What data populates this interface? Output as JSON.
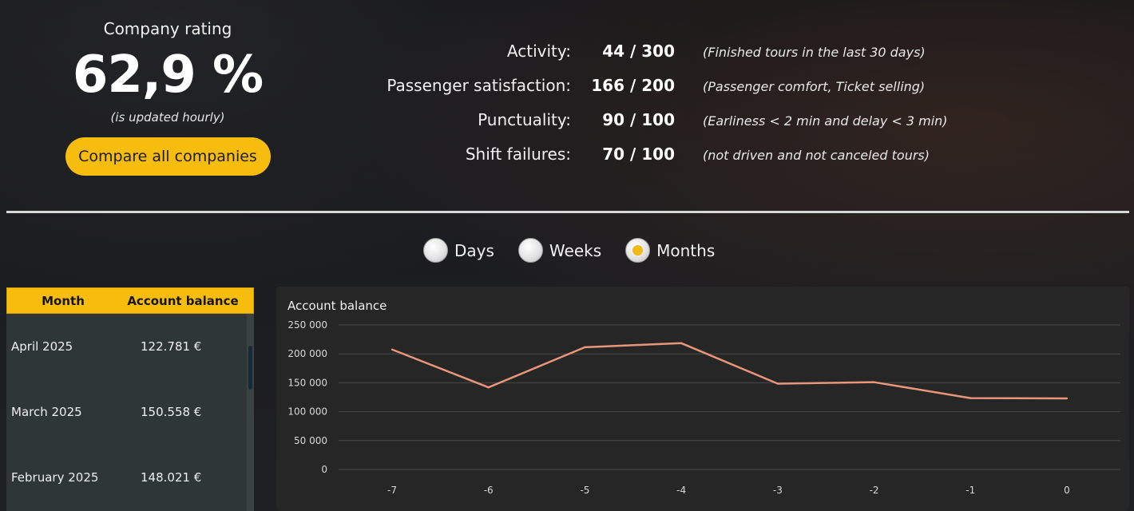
{
  "rating": {
    "title": "Company rating",
    "value": "62,9 %",
    "note": "(is updated hourly)",
    "compare_button": "Compare all companies"
  },
  "metrics": [
    {
      "label": "Activity:",
      "value": "44 / 300",
      "desc": "(Finished tours in the last 30 days)"
    },
    {
      "label": "Passenger satisfaction:",
      "value": "166 / 200",
      "desc": "(Passenger comfort, Ticket selling)"
    },
    {
      "label": "Punctuality:",
      "value": "90 / 100",
      "desc": "(Earliness < 2 min and delay < 3 min)"
    },
    {
      "label": "Shift failures:",
      "value": "70 / 100",
      "desc": "(not driven and not canceled tours)"
    }
  ],
  "period": {
    "options": [
      "Days",
      "Weeks",
      "Months"
    ],
    "selected": "Months"
  },
  "table": {
    "headers": [
      "Month",
      "Account balance"
    ],
    "rows": [
      [
        "April 2025",
        "122.781 €"
      ],
      [
        "March 2025",
        "150.558 €"
      ],
      [
        "February 2025",
        "148.021 €"
      ]
    ]
  },
  "colors": {
    "accent": "#f6bd0e",
    "line": "#e8957a",
    "grid": "#4a4a4a"
  },
  "chart_data": {
    "type": "line",
    "title": "Account balance",
    "x": [
      -7,
      -6,
      -5,
      -4,
      -3,
      -2,
      -1,
      0
    ],
    "series": [
      {
        "values": [
          207500,
          142000,
          211500,
          218500,
          148500,
          151000,
          123500,
          123000
        ]
      }
    ],
    "ylim": [
      0,
      250000
    ],
    "yticks": [
      0,
      50000,
      100000,
      150000,
      200000,
      250000
    ],
    "ytick_labels": [
      "0",
      "50 000",
      "100 000",
      "150 000",
      "200 000",
      "250 000"
    ],
    "xtick_labels": [
      "-7",
      "-6",
      "-5",
      "-4",
      "-3",
      "-2",
      "-1",
      "0"
    ],
    "grid": true
  }
}
